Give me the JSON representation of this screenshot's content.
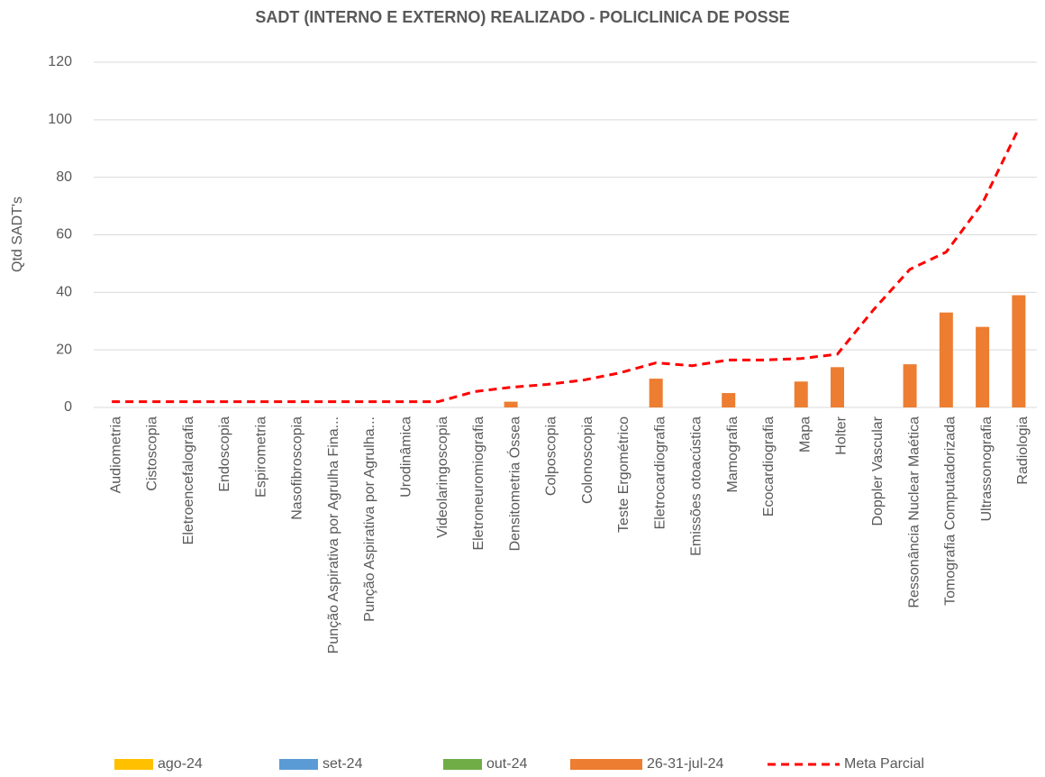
{
  "chart_data": {
    "type": "bar",
    "title": "SADT (INTERNO E EXTERNO) REALIZADO - POLICLINICA DE POSSE",
    "y_label": "Qtd SADT's",
    "categories": [
      "Audiometria",
      "Cistoscopia",
      "Eletroencefalografia",
      "Endoscopia",
      "Espirometria",
      "Nasofibroscopia",
      "Punção Aspirativa por Agrulha Fina...",
      "Punção Aspirativa por Agrulha...",
      "Urodinâmica",
      "Videolaringoscopia",
      "Eletroneuromiografia",
      "Densitometria Óssea",
      "Colposcopia",
      "Colonoscopia",
      "Teste Ergométrico",
      "Eletrocardiografia",
      "Emissões otoacústica",
      "Mamografia",
      "Ecocardiografia",
      "Mapa",
      "Holter",
      "Doppler Vascular",
      "Ressonância Nuclear Maética",
      "Tomografia Computadorizada",
      "Ultrassonografia",
      "Radiologia"
    ],
    "series": [
      {
        "name": "ago-24",
        "color": "#ffc000",
        "values": [
          null,
          null,
          null,
          null,
          null,
          null,
          null,
          null,
          null,
          null,
          null,
          null,
          null,
          null,
          null,
          null,
          null,
          null,
          null,
          null,
          null,
          null,
          null,
          null,
          null,
          null
        ]
      },
      {
        "name": "set-24",
        "color": "#5b9bd5",
        "values": [
          null,
          null,
          null,
          null,
          null,
          null,
          null,
          null,
          null,
          null,
          null,
          null,
          null,
          null,
          null,
          null,
          null,
          null,
          null,
          null,
          null,
          null,
          null,
          null,
          null,
          null
        ]
      },
      {
        "name": "out-24",
        "color": "#70ad47",
        "values": [
          null,
          null,
          null,
          null,
          null,
          null,
          null,
          null,
          null,
          null,
          null,
          null,
          null,
          null,
          null,
          null,
          null,
          null,
          null,
          null,
          null,
          null,
          null,
          null,
          null,
          null
        ]
      },
      {
        "name": "26-31-jul-24",
        "color": "#ed7d31",
        "values": [
          0,
          0,
          0,
          0,
          0,
          0,
          0,
          0,
          0,
          0,
          0,
          2,
          0,
          0,
          0,
          10,
          0,
          5,
          0,
          9,
          14,
          0,
          15,
          33,
          28,
          39
        ]
      },
      {
        "name": "Meta Parcial",
        "color": "#ff0000",
        "type": "line",
        "dashed": true,
        "values": [
          2,
          2,
          2,
          2,
          2,
          2,
          2,
          2,
          2,
          2,
          5.5,
          7,
          8,
          9.5,
          12,
          15.5,
          14.5,
          16.5,
          16.5,
          17,
          18.5,
          34,
          48,
          54,
          71,
          97
        ]
      }
    ],
    "ylim": [
      0,
      120
    ],
    "yticks": [
      0,
      20,
      40,
      60,
      80,
      100,
      120
    ],
    "grid": true,
    "legend": "bottom"
  }
}
